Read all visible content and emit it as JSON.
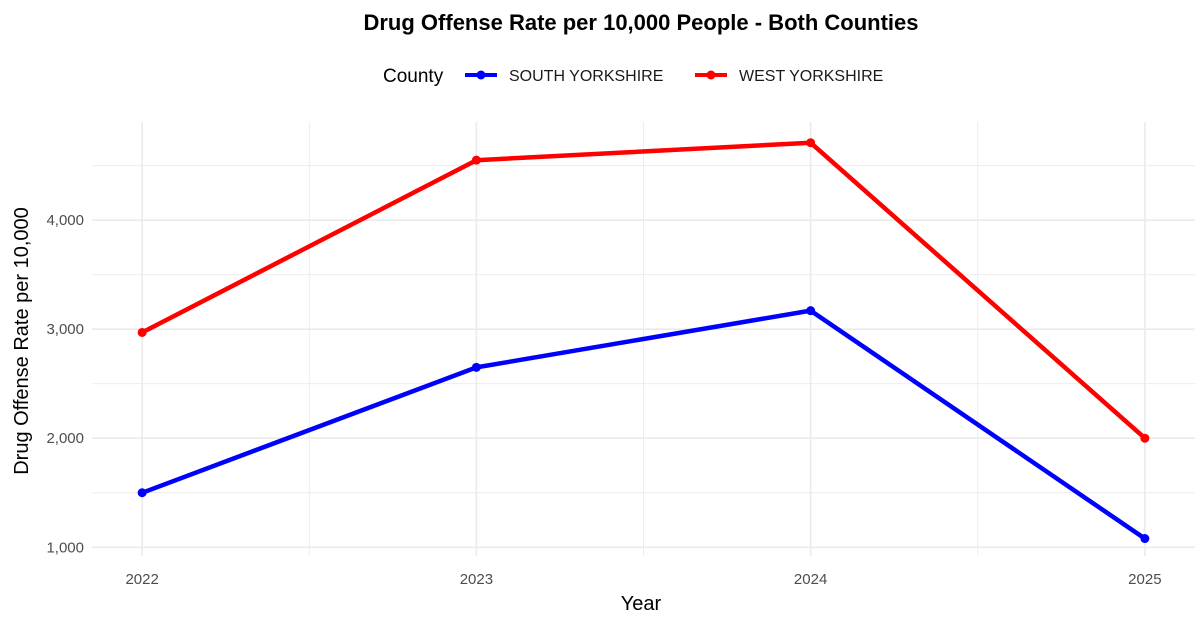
{
  "chart_data": {
    "type": "line",
    "title": "Drug Offense Rate per 10,000 People - Both Counties",
    "xlabel": "Year",
    "ylabel": "Drug Offense Rate per 10,000",
    "x": [
      2022,
      2023,
      2024,
      2025
    ],
    "x_tick_labels": [
      "2022",
      "2023",
      "2024",
      "2025"
    ],
    "y_ticks": [
      1000,
      2000,
      3000,
      4000
    ],
    "y_tick_labels": [
      "1,000",
      "2,000",
      "3,000",
      "4,000"
    ],
    "xlim": [
      2021.85,
      2025.15
    ],
    "ylim": [
      920,
      4900
    ],
    "grid": true,
    "legend": {
      "title": "County",
      "position": "top"
    },
    "series": [
      {
        "name": "SOUTH YORKSHIRE",
        "color": "#0000ff",
        "values": [
          1500,
          2650,
          3170,
          1080
        ]
      },
      {
        "name": "WEST YORKSHIRE",
        "color": "#ff0000",
        "values": [
          2970,
          4550,
          4710,
          2000
        ]
      }
    ]
  }
}
